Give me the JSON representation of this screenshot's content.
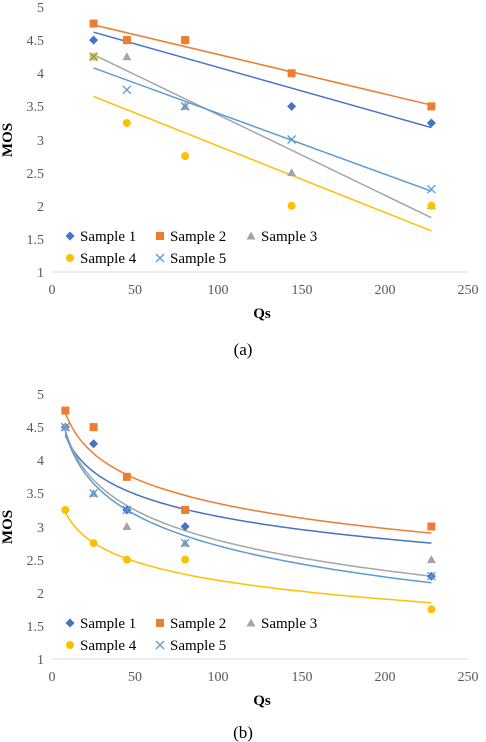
{
  "chart_data": [
    {
      "type": "scatter",
      "caption": "(a)",
      "title": "",
      "xlabel": "Qs",
      "ylabel": "MOS",
      "xlim": [
        0,
        250
      ],
      "ylim": [
        1,
        5
      ],
      "x_ticks": [
        "0",
        "50",
        "100",
        "150",
        "200",
        "250"
      ],
      "y_ticks": [
        "1",
        "1.5",
        "2",
        "2.5",
        "3",
        "3.5",
        "4",
        "4.5",
        "5"
      ],
      "grid": false,
      "legend_position": "bottom-left",
      "trendline": "linear",
      "series": [
        {
          "name": "Sample 1",
          "marker": "diamond",
          "color": "#4472C4",
          "x": [
            25,
            45,
            80,
            144,
            228
          ],
          "y": [
            4.5,
            4.5,
            4.5,
            3.5,
            3.25
          ],
          "trend": [
            [
              25,
              4.62
            ],
            [
              228,
              3.18
            ]
          ]
        },
        {
          "name": "Sample 2",
          "marker": "square",
          "color": "#ED7D31",
          "x": [
            25,
            45,
            80,
            144,
            228
          ],
          "y": [
            4.75,
            4.5,
            4.5,
            4.0,
            3.5
          ],
          "trend": [
            [
              25,
              4.73
            ],
            [
              228,
              3.52
            ]
          ]
        },
        {
          "name": "Sample 3",
          "marker": "triangle",
          "color": "#A5A5A5",
          "x": [
            25,
            45,
            80,
            144,
            228
          ],
          "y": [
            4.25,
            4.25,
            3.5,
            2.5,
            2.0
          ],
          "trend": [
            [
              25,
              4.28
            ],
            [
              228,
              1.82
            ]
          ]
        },
        {
          "name": "Sample 4",
          "marker": "circle",
          "color": "#FFC000",
          "x": [
            25,
            45,
            80,
            144,
            228
          ],
          "y": [
            4.25,
            3.25,
            2.75,
            2.0,
            2.0
          ],
          "trend": [
            [
              25,
              3.65
            ],
            [
              228,
              1.62
            ]
          ]
        },
        {
          "name": "Sample 5",
          "marker": "x",
          "color": "#5B9BD5",
          "x": [
            25,
            45,
            80,
            144,
            228
          ],
          "y": [
            4.25,
            3.75,
            3.5,
            3.0,
            2.25
          ],
          "trend": [
            [
              25,
              4.08
            ],
            [
              228,
              2.22
            ]
          ]
        }
      ]
    },
    {
      "type": "scatter",
      "caption": "(b)",
      "title": "",
      "xlabel": "Qs",
      "ylabel": "MOS",
      "xlim": [
        0,
        250
      ],
      "ylim": [
        1,
        5
      ],
      "x_ticks": [
        "0",
        "50",
        "100",
        "150",
        "200",
        "250"
      ],
      "y_ticks": [
        "1",
        "1.5",
        "2",
        "2.5",
        "3",
        "3.5",
        "4",
        "4.5",
        "5"
      ],
      "grid": false,
      "legend_position": "bottom-left",
      "trendline": "logarithmic",
      "series": [
        {
          "name": "Sample 1",
          "marker": "diamond",
          "color": "#4472C4",
          "x": [
            8,
            25,
            45,
            80,
            228
          ],
          "y": [
            4.5,
            4.25,
            3.25,
            3.0,
            2.25
          ],
          "trend": [
            [
              8,
              4.38
            ],
            [
              228,
              2.75
            ]
          ]
        },
        {
          "name": "Sample 2",
          "marker": "square",
          "color": "#ED7D31",
          "x": [
            8,
            25,
            45,
            80,
            228
          ],
          "y": [
            4.75,
            4.5,
            3.75,
            3.25,
            3.0
          ],
          "trend": [
            [
              8,
              4.72
            ],
            [
              228,
              2.9
            ]
          ]
        },
        {
          "name": "Sample 3",
          "marker": "triangle",
          "color": "#A5A5A5",
          "x": [
            8,
            25,
            45,
            80,
            228
          ],
          "y": [
            4.5,
            3.5,
            3.0,
            2.75,
            2.5
          ],
          "trend": [
            [
              8,
              4.45
            ],
            [
              228,
              2.25
            ]
          ]
        },
        {
          "name": "Sample 4",
          "marker": "circle",
          "color": "#FFC000",
          "x": [
            8,
            25,
            45,
            80,
            228
          ],
          "y": [
            3.25,
            2.75,
            2.5,
            2.5,
            1.75
          ],
          "trend": [
            [
              8,
              3.22
            ],
            [
              228,
              1.85
            ]
          ]
        },
        {
          "name": "Sample 5",
          "marker": "x",
          "color": "#5B9BD5",
          "x": [
            8,
            25,
            45,
            80,
            228
          ],
          "y": [
            4.5,
            3.5,
            3.25,
            2.75,
            2.25
          ],
          "trend": [
            [
              8,
              4.42
            ],
            [
              228,
              2.15
            ]
          ]
        }
      ]
    }
  ]
}
